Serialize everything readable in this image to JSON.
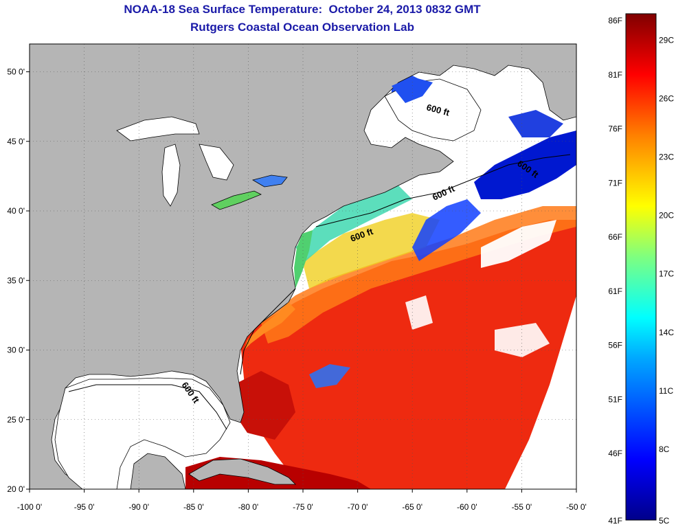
{
  "title": {
    "line1": "NOAA-18 Sea Surface Temperature:  October 24, 2013 0832 GMT",
    "line2": "Rutgers Coastal Ocean Observation Lab"
  },
  "map": {
    "lon_range": [
      -100,
      -50
    ],
    "lat_range": [
      20,
      52
    ],
    "x_ticks": [
      "-100 0'",
      "-95 0'",
      "-90 0'",
      "-85 0'",
      "-80 0'",
      "-75 0'",
      "-70 0'",
      "-65 0'",
      "-60 0'",
      "-55 0'",
      "-50 0'"
    ],
    "y_ticks": [
      "50 0'",
      "45 0'",
      "40 0'",
      "35 0'",
      "30 0'",
      "25 0'",
      "20 0'"
    ],
    "contour_label": "600 ft",
    "colors": {
      "land": "#b5b5b5",
      "cloud": "#ffffff",
      "frame": "#000000"
    }
  },
  "colorbar": {
    "fahrenheit": [
      "86F",
      "81F",
      "76F",
      "71F",
      "66F",
      "61F",
      "56F",
      "51F",
      "46F",
      "41F"
    ],
    "celsius": [
      "29C",
      "26C",
      "23C",
      "20C",
      "17C",
      "14C",
      "11C",
      "8C",
      "5C"
    ]
  }
}
